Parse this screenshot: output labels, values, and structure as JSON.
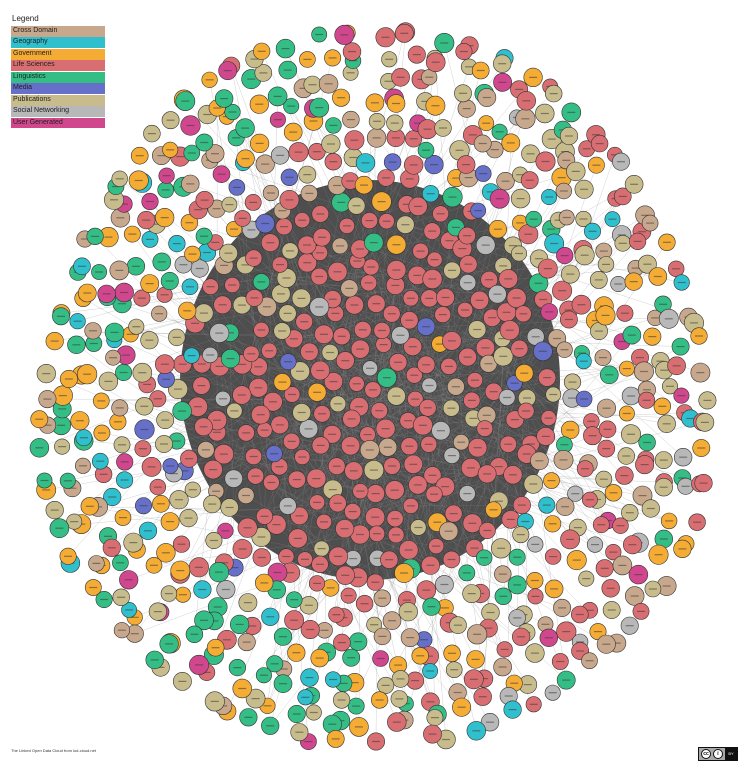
{
  "legend": {
    "title": "Legend",
    "items": [
      {
        "label": "Cross Domain",
        "color": "#c8a88c"
      },
      {
        "label": "Geography",
        "color": "#30c0cd"
      },
      {
        "label": "Government",
        "color": "#f4ac35"
      },
      {
        "label": "Life Sciences",
        "color": "#d96e72"
      },
      {
        "label": "Linguistics",
        "color": "#34be86"
      },
      {
        "label": "Media",
        "color": "#6670c8"
      },
      {
        "label": "Publications",
        "color": "#c8bc8c"
      },
      {
        "label": "Social Networking",
        "color": "#b8b8b8"
      },
      {
        "label": "User Generated",
        "color": "#d1478e"
      }
    ]
  },
  "footer": {
    "caption": "The Linked Open Data Cloud from lod-cloud.net"
  },
  "license_badge": {
    "cc_glyph": "cc",
    "by_glyph": "i",
    "by_label": "BY"
  },
  "colors": {
    "core_background": "#444444",
    "edge": "#888888",
    "node_stroke": "#333333"
  }
}
